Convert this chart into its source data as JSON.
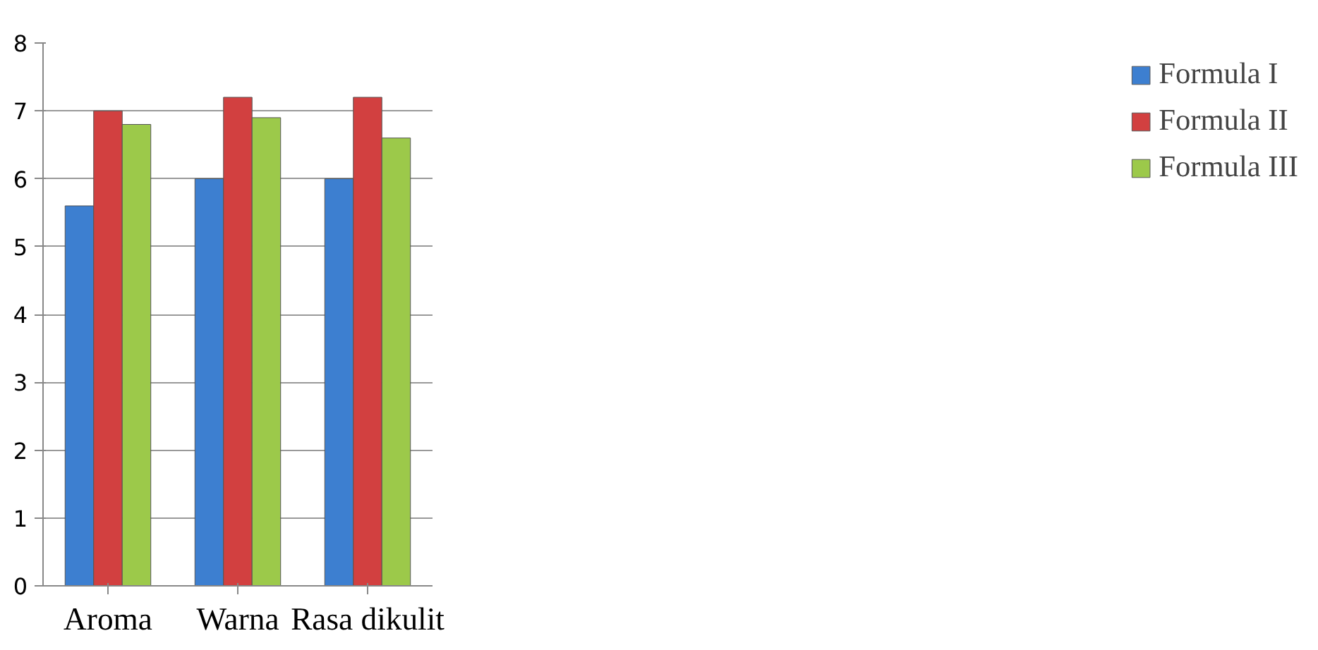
{
  "chart_data": {
    "type": "bar",
    "categories": [
      "Aroma",
      "Warna",
      "Rasa dikulit"
    ],
    "series": [
      {
        "name": "Formula I",
        "color": "#3d7fd0",
        "values": [
          5.6,
          6.0,
          6.0
        ]
      },
      {
        "name": "Formula II",
        "color": "#d24040",
        "values": [
          7.0,
          7.2,
          7.2
        ]
      },
      {
        "name": "Formula III",
        "color": "#9cc94a",
        "values": [
          6.8,
          6.9,
          6.6
        ]
      }
    ],
    "ylim": [
      0,
      8
    ],
    "yticks": [
      0,
      1,
      2,
      3,
      4,
      5,
      6,
      7,
      8
    ],
    "grid": "y",
    "legend": "right"
  }
}
